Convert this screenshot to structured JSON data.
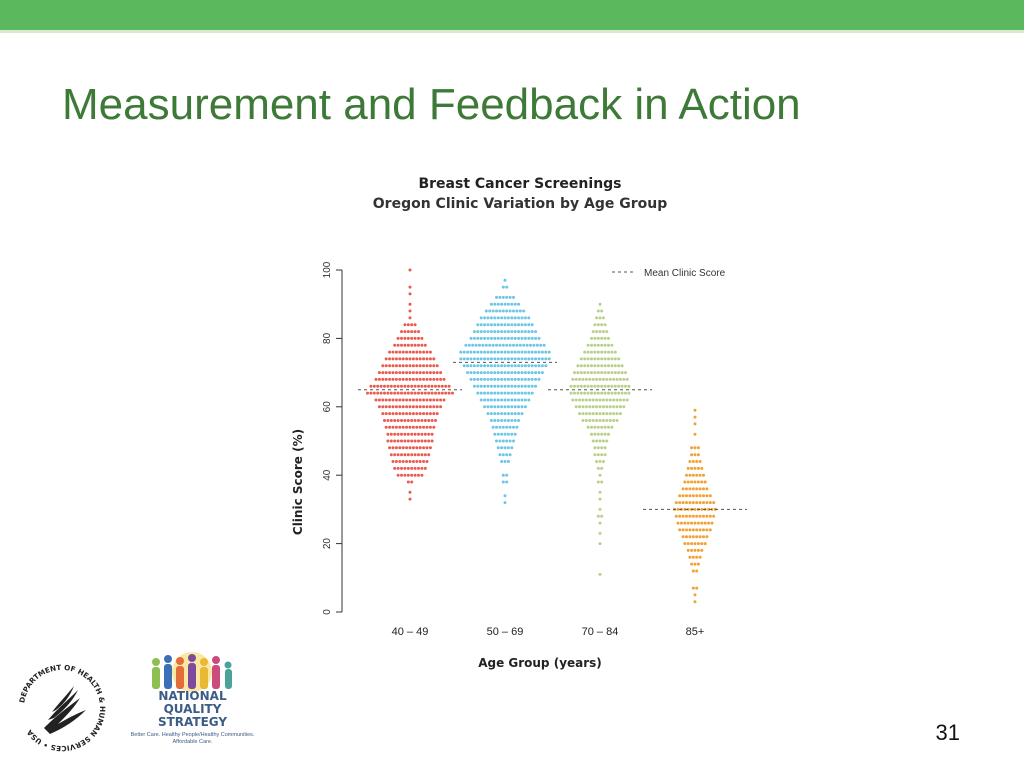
{
  "slide": {
    "title": "Measurement and Feedback in Action",
    "page_number": "31"
  },
  "colors": {
    "top_bar": "#5cb85c",
    "title": "#3d7a37",
    "series_40_49": "#ea5b4f",
    "series_50_69": "#6ec6e6",
    "series_70_84": "#b8d08a",
    "series_85_plus": "#f2a134",
    "mean_line": "#555555"
  },
  "logos": {
    "hhs_icon": "hhs-eagle-seal-icon",
    "hhs_ring_text": "DEPARTMENT OF HEALTH & HUMAN SERVICES • USA",
    "nqs_line1": "NATIONAL",
    "nqs_line2": "QUALITY",
    "nqs_line3": "STRATEGY",
    "nqs_tagline1": "Better Care. Healthy People/Healthy Communities.",
    "nqs_tagline2": "Affordable Care."
  },
  "chart_data": {
    "type": "scatter",
    "style": "beeswarm",
    "title": "Breast Cancer Screenings",
    "subtitle": "Oregon Clinic Variation by Age Group",
    "xlabel": "Age Group (years)",
    "ylabel": "Clinic Score (%)",
    "categories": [
      "40 – 49",
      "50 – 69",
      "70 – 84",
      "85+"
    ],
    "ylim": [
      0,
      100
    ],
    "yticks": [
      0,
      20,
      40,
      60,
      80,
      100
    ],
    "legend": {
      "label": "Mean Clinic Score",
      "position": "top-right"
    },
    "grid": false,
    "series": [
      {
        "category": "40 – 49",
        "mean": 65,
        "bins": [
          {
            "y": 33,
            "n": 1
          },
          {
            "y": 35,
            "n": 1
          },
          {
            "y": 38,
            "n": 2
          },
          {
            "y": 40,
            "n": 8
          },
          {
            "y": 42,
            "n": 10
          },
          {
            "y": 44,
            "n": 11
          },
          {
            "y": 46,
            "n": 12
          },
          {
            "y": 48,
            "n": 13
          },
          {
            "y": 50,
            "n": 14
          },
          {
            "y": 52,
            "n": 14
          },
          {
            "y": 54,
            "n": 15
          },
          {
            "y": 56,
            "n": 16
          },
          {
            "y": 58,
            "n": 17
          },
          {
            "y": 60,
            "n": 19
          },
          {
            "y": 62,
            "n": 21
          },
          {
            "y": 64,
            "n": 26
          },
          {
            "y": 66,
            "n": 24
          },
          {
            "y": 68,
            "n": 21
          },
          {
            "y": 70,
            "n": 19
          },
          {
            "y": 72,
            "n": 17
          },
          {
            "y": 74,
            "n": 15
          },
          {
            "y": 76,
            "n": 13
          },
          {
            "y": 78,
            "n": 10
          },
          {
            "y": 80,
            "n": 8
          },
          {
            "y": 82,
            "n": 6
          },
          {
            "y": 84,
            "n": 4
          },
          {
            "y": 86,
            "n": 1
          },
          {
            "y": 88,
            "n": 1
          },
          {
            "y": 90,
            "n": 1
          },
          {
            "y": 93,
            "n": 1
          },
          {
            "y": 95,
            "n": 1
          },
          {
            "y": 100,
            "n": 1
          }
        ]
      },
      {
        "category": "50 – 69",
        "mean": 73,
        "bins": [
          {
            "y": 32,
            "n": 1
          },
          {
            "y": 34,
            "n": 1
          },
          {
            "y": 38,
            "n": 2
          },
          {
            "y": 40,
            "n": 2
          },
          {
            "y": 44,
            "n": 3
          },
          {
            "y": 46,
            "n": 4
          },
          {
            "y": 48,
            "n": 5
          },
          {
            "y": 50,
            "n": 6
          },
          {
            "y": 52,
            "n": 7
          },
          {
            "y": 54,
            "n": 8
          },
          {
            "y": 56,
            "n": 9
          },
          {
            "y": 58,
            "n": 11
          },
          {
            "y": 60,
            "n": 13
          },
          {
            "y": 62,
            "n": 15
          },
          {
            "y": 64,
            "n": 17
          },
          {
            "y": 66,
            "n": 19
          },
          {
            "y": 68,
            "n": 21
          },
          {
            "y": 70,
            "n": 23
          },
          {
            "y": 72,
            "n": 25
          },
          {
            "y": 74,
            "n": 27
          },
          {
            "y": 76,
            "n": 27
          },
          {
            "y": 78,
            "n": 24
          },
          {
            "y": 80,
            "n": 21
          },
          {
            "y": 82,
            "n": 19
          },
          {
            "y": 84,
            "n": 17
          },
          {
            "y": 86,
            "n": 15
          },
          {
            "y": 88,
            "n": 12
          },
          {
            "y": 90,
            "n": 9
          },
          {
            "y": 92,
            "n": 6
          },
          {
            "y": 95,
            "n": 2
          },
          {
            "y": 97,
            "n": 1
          }
        ]
      },
      {
        "category": "70 – 84",
        "mean": 65,
        "bins": [
          {
            "y": 11,
            "n": 1
          },
          {
            "y": 20,
            "n": 1
          },
          {
            "y": 23,
            "n": 1
          },
          {
            "y": 26,
            "n": 1
          },
          {
            "y": 28,
            "n": 2
          },
          {
            "y": 30,
            "n": 1
          },
          {
            "y": 33,
            "n": 1
          },
          {
            "y": 35,
            "n": 1
          },
          {
            "y": 38,
            "n": 2
          },
          {
            "y": 40,
            "n": 1
          },
          {
            "y": 42,
            "n": 2
          },
          {
            "y": 44,
            "n": 3
          },
          {
            "y": 46,
            "n": 4
          },
          {
            "y": 48,
            "n": 4
          },
          {
            "y": 50,
            "n": 5
          },
          {
            "y": 52,
            "n": 6
          },
          {
            "y": 54,
            "n": 8
          },
          {
            "y": 56,
            "n": 11
          },
          {
            "y": 58,
            "n": 13
          },
          {
            "y": 60,
            "n": 15
          },
          {
            "y": 62,
            "n": 17
          },
          {
            "y": 64,
            "n": 18
          },
          {
            "y": 66,
            "n": 18
          },
          {
            "y": 68,
            "n": 17
          },
          {
            "y": 70,
            "n": 16
          },
          {
            "y": 72,
            "n": 14
          },
          {
            "y": 74,
            "n": 12
          },
          {
            "y": 76,
            "n": 10
          },
          {
            "y": 78,
            "n": 8
          },
          {
            "y": 80,
            "n": 6
          },
          {
            "y": 82,
            "n": 5
          },
          {
            "y": 84,
            "n": 4
          },
          {
            "y": 86,
            "n": 3
          },
          {
            "y": 88,
            "n": 2
          },
          {
            "y": 90,
            "n": 1
          }
        ]
      },
      {
        "category": "85+",
        "mean": 30,
        "bins": [
          {
            "y": 3,
            "n": 1
          },
          {
            "y": 5,
            "n": 1
          },
          {
            "y": 7,
            "n": 2
          },
          {
            "y": 12,
            "n": 2
          },
          {
            "y": 14,
            "n": 3
          },
          {
            "y": 16,
            "n": 4
          },
          {
            "y": 18,
            "n": 5
          },
          {
            "y": 20,
            "n": 7
          },
          {
            "y": 22,
            "n": 8
          },
          {
            "y": 24,
            "n": 10
          },
          {
            "y": 26,
            "n": 11
          },
          {
            "y": 28,
            "n": 12
          },
          {
            "y": 30,
            "n": 13
          },
          {
            "y": 32,
            "n": 12
          },
          {
            "y": 34,
            "n": 10
          },
          {
            "y": 36,
            "n": 8
          },
          {
            "y": 38,
            "n": 7
          },
          {
            "y": 40,
            "n": 6
          },
          {
            "y": 42,
            "n": 5
          },
          {
            "y": 44,
            "n": 4
          },
          {
            "y": 46,
            "n": 3
          },
          {
            "y": 48,
            "n": 3
          },
          {
            "y": 52,
            "n": 1
          },
          {
            "y": 55,
            "n": 1
          },
          {
            "y": 57,
            "n": 1
          },
          {
            "y": 59,
            "n": 1
          }
        ]
      }
    ]
  }
}
